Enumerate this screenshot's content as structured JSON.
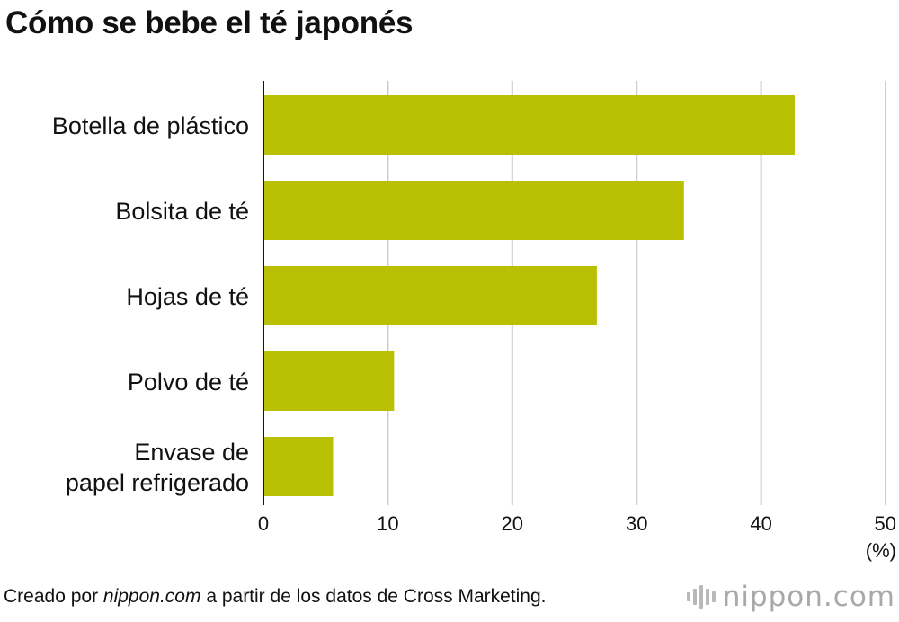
{
  "title": "Cómo se bebe el té japonés",
  "footer": {
    "prefix": "Creado por ",
    "source_site": "nippon.com",
    "suffix": " a partir de los datos de Cross Marketing."
  },
  "brand": {
    "name": "nippon",
    "dot": ".",
    "tld": "com",
    "icon": "nippon-waveform-logo-icon"
  },
  "colors": {
    "bar": "#b9c004",
    "grid": "#cccccc",
    "axis": "#111111"
  },
  "chart_data": {
    "type": "bar",
    "orientation": "horizontal",
    "title": "Cómo se bebe el té japonés",
    "unit": "(%)",
    "categories": [
      [
        "Botella de plástico"
      ],
      [
        "Bolsita de té"
      ],
      [
        "Hojas de té"
      ],
      [
        "Polvo de té"
      ],
      [
        "Envase de",
        "papel refrigerado"
      ]
    ],
    "values": [
      42.7,
      33.8,
      26.8,
      10.5,
      5.6
    ],
    "xlim": [
      0,
      50
    ],
    "xticks": [
      0,
      10,
      20,
      30,
      40,
      50
    ],
    "grid": true,
    "legend": "none"
  }
}
